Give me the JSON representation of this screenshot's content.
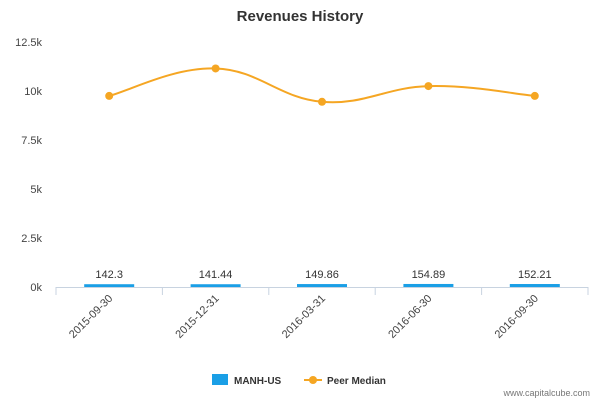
{
  "chart_data": {
    "type": "bar",
    "title": "Revenues History",
    "xlabel": "",
    "ylabel": "",
    "categories": [
      "2015-09-30",
      "2015-12-31",
      "2016-03-31",
      "2016-06-30",
      "2016-09-30"
    ],
    "series": [
      {
        "name": "MANH-US",
        "type": "bar",
        "color": "#1a9fe6",
        "values": [
          142.3,
          141.44,
          149.86,
          154.89,
          152.21
        ],
        "labels": [
          "142.3",
          "141.44",
          "149.86",
          "154.89",
          "152.21"
        ]
      },
      {
        "name": "Peer Median",
        "type": "line",
        "color": "#f5a623",
        "values": [
          9750,
          11150,
          9450,
          10250,
          9750
        ]
      }
    ],
    "ylim": [
      0,
      12500
    ],
    "yticks": [
      {
        "value": 0,
        "label": "0k"
      },
      {
        "value": 2500,
        "label": "2.5k"
      },
      {
        "value": 5000,
        "label": "5k"
      },
      {
        "value": 7500,
        "label": "7.5k"
      },
      {
        "value": 10000,
        "label": "10k"
      },
      {
        "value": 12500,
        "label": "12.5k"
      }
    ],
    "grid": false,
    "legend": "bottom-center"
  },
  "source": "www.capitalcube.com"
}
